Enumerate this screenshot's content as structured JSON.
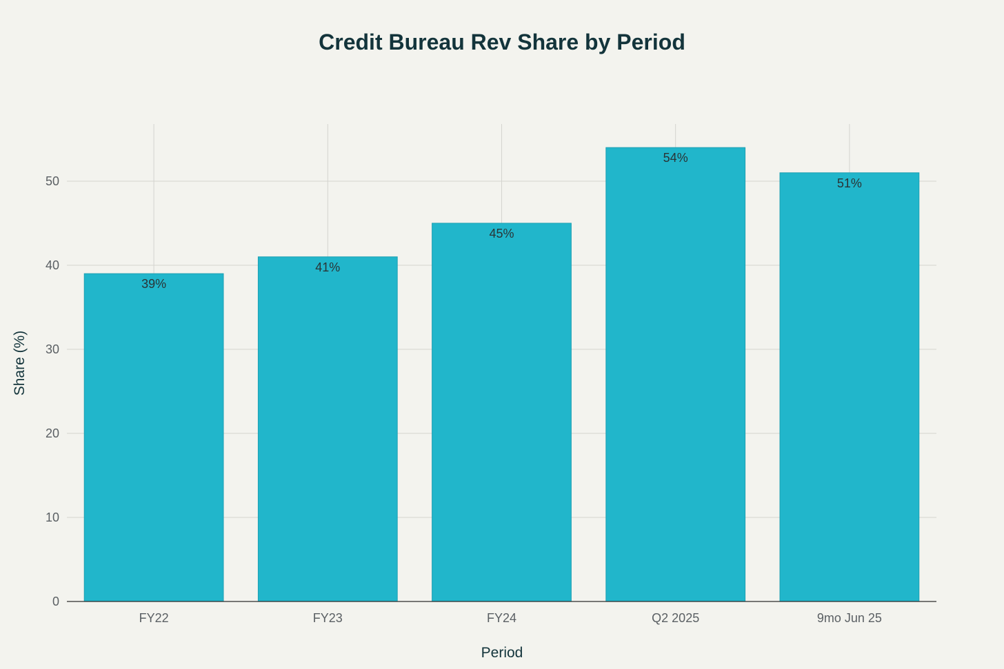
{
  "chart_data": {
    "type": "bar",
    "title": "Credit Bureau Rev Share by Period",
    "xlabel": "Period",
    "ylabel": "Share (%)",
    "categories": [
      "FY22",
      "FY23",
      "FY24",
      "Q2 2025",
      "9mo Jun 25"
    ],
    "values": [
      39,
      41,
      45,
      54,
      51
    ],
    "data_labels": [
      "39%",
      "41%",
      "45%",
      "54%",
      "51%"
    ],
    "ylim": [
      0,
      56.8
    ],
    "yticks": [
      0,
      10,
      20,
      30,
      40,
      50
    ],
    "grid": true,
    "bar_color": "#21b6cb",
    "background_color": "#f3f3ee"
  }
}
